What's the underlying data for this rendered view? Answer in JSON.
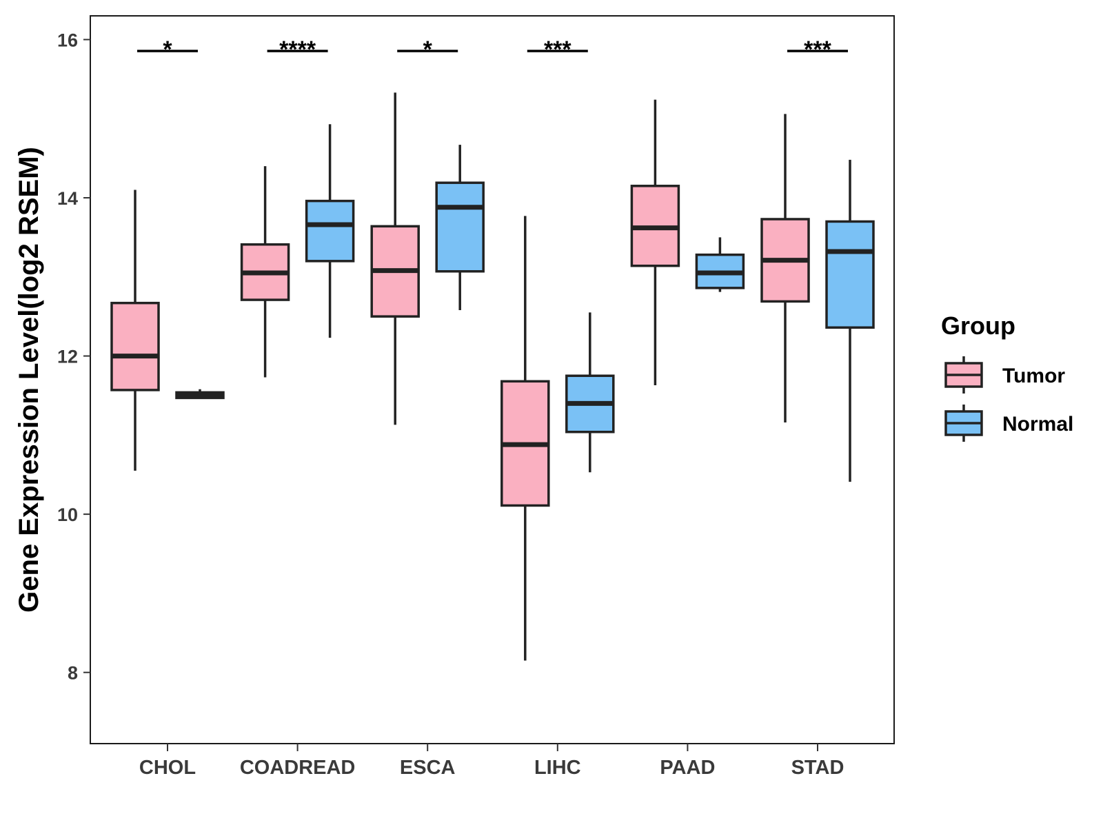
{
  "chart_data": {
    "type": "boxplot",
    "ylabel": "Gene Expression Level(log2 RSEM)",
    "ylim": [
      7.1,
      16.3
    ],
    "yticks": [
      8,
      10,
      12,
      14,
      16
    ],
    "categories": [
      "CHOL",
      "COADREAD",
      "ESCA",
      "LIHC",
      "PAAD",
      "STAD"
    ],
    "series": [
      {
        "name": "Tumor",
        "color": "#FAB0C1",
        "boxes": [
          {
            "min": 10.55,
            "q1": 11.57,
            "median": 12.0,
            "q3": 12.67,
            "max": 14.1
          },
          {
            "min": 11.73,
            "q1": 12.71,
            "median": 13.05,
            "q3": 13.41,
            "max": 14.4
          },
          {
            "min": 11.13,
            "q1": 12.5,
            "median": 13.08,
            "q3": 13.64,
            "max": 15.33
          },
          {
            "min": 8.15,
            "q1": 10.11,
            "median": 10.88,
            "q3": 11.68,
            "max": 13.77
          },
          {
            "min": 11.63,
            "q1": 13.14,
            "median": 13.62,
            "q3": 14.15,
            "max": 15.24
          },
          {
            "min": 11.16,
            "q1": 12.69,
            "median": 13.21,
            "q3": 13.73,
            "max": 15.06
          }
        ]
      },
      {
        "name": "Normal",
        "color": "#7AC1F5",
        "boxes": [
          {
            "min": 11.47,
            "q1": 11.47,
            "median": 11.51,
            "q3": 11.54,
            "max": 11.58
          },
          {
            "min": 12.23,
            "q1": 13.2,
            "median": 13.66,
            "q3": 13.96,
            "max": 14.93
          },
          {
            "min": 12.58,
            "q1": 13.07,
            "median": 13.88,
            "q3": 14.19,
            "max": 14.67
          },
          {
            "min": 10.53,
            "q1": 11.04,
            "median": 11.4,
            "q3": 11.75,
            "max": 12.55
          },
          {
            "min": 12.81,
            "q1": 12.86,
            "median": 13.05,
            "q3": 13.28,
            "max": 13.5
          },
          {
            "min": 10.41,
            "q1": 12.36,
            "median": 13.32,
            "q3": 13.7,
            "max": 14.48
          }
        ]
      }
    ],
    "significance": [
      "*",
      "****",
      "*",
      "***",
      "",
      "***"
    ],
    "legend": {
      "title": "Group",
      "position": "right"
    },
    "grid": false
  }
}
